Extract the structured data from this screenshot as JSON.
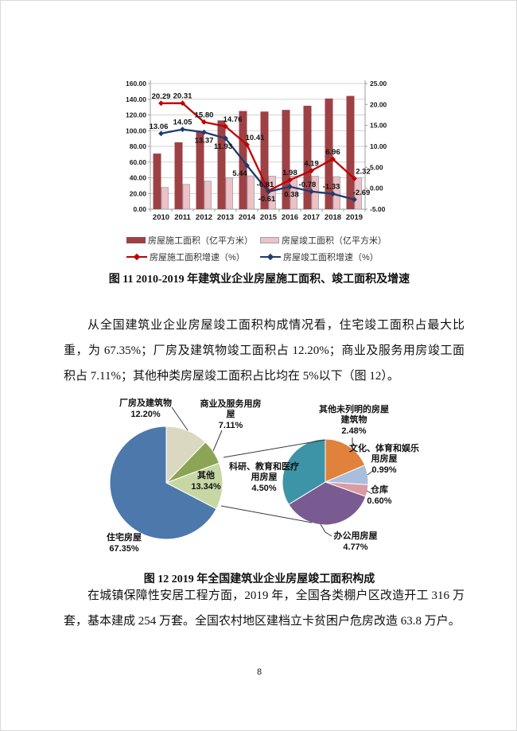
{
  "page": {
    "number": "8"
  },
  "figure11": {
    "caption": "图 11  2010-2019 年建筑业企业房屋施工面积、竣工面积及增速"
  },
  "figure12": {
    "caption": "图 12  2019 年全国建筑业企业房屋竣工面积构成"
  },
  "paragraphs": {
    "p1": "从全国建筑业企业房屋竣工面积构成情况看，住宅竣工面积占最大比重，为 67.35%；厂房及建筑物竣工面积占 12.20%；商业及服务用房竣工面积占 7.11%；其他种类房屋竣工面积占比均在 5%以下（图 12）。",
    "p2": "在城镇保障性安居工程方面，2019 年，全国各类棚户区改造开工 316 万套，基本建成 254 万套。全国农村地区建档立卡贫困户危房改造 63.8 万户。"
  },
  "chart_data": [
    {
      "type": "bar+line",
      "title": "2010-2019 年建筑业企业房屋施工面积、竣工面积及增速",
      "categories": [
        "2010",
        "2011",
        "2012",
        "2013",
        "2014",
        "2015",
        "2016",
        "2017",
        "2018",
        "2019"
      ],
      "left_axis": {
        "min": 0,
        "max": 160,
        "step": 20
      },
      "right_axis": {
        "min": -5,
        "max": 25,
        "step": 5
      },
      "grid": true,
      "legend_position": "bottom",
      "series": [
        {
          "name": "房屋施工面积（亿平方米）",
          "kind": "bar",
          "axis": "left",
          "color": "#9d4145",
          "values": [
            70.8,
            85.2,
            98.6,
            113.0,
            125.0,
            124.3,
            126.4,
            131.7,
            140.9,
            144.2
          ]
        },
        {
          "name": "房屋竣工面积（亿平方米）",
          "kind": "bar",
          "axis": "left",
          "color": "#eec1c5",
          "stroke": "#93a0b4",
          "values": [
            27.7,
            31.6,
            35.8,
            40.2,
            42.4,
            42.1,
            42.2,
            41.9,
            41.4,
            40.2
          ]
        },
        {
          "name": "房屋施工面积增速（%）",
          "kind": "line",
          "axis": "right",
          "color": "#c00000",
          "values": [
            20.29,
            20.31,
            15.8,
            14.76,
            10.41,
            -0.61,
            1.98,
            4.19,
            6.96,
            2.32
          ],
          "show_labels": true,
          "label_pos": [
            "above",
            "above",
            "above",
            "above",
            "above",
            "below",
            "above",
            "above",
            "above",
            "above"
          ],
          "label_dx": [
            0,
            0,
            0,
            9,
            10,
            -2,
            0,
            0,
            0,
            11
          ]
        },
        {
          "name": "房屋竣工面积增速（%）",
          "kind": "line",
          "axis": "right",
          "color": "#1f3c6e",
          "values": [
            13.06,
            14.05,
            13.37,
            11.93,
            5.44,
            -0.81,
            0.38,
            -0.78,
            -1.33,
            -2.69
          ],
          "show_labels": true,
          "label_pos": [
            "above",
            "above",
            "below",
            "below",
            "below",
            "above",
            "below",
            "above",
            "above",
            "above"
          ],
          "label_dx": [
            -3,
            0,
            0,
            -3,
            -9,
            -4,
            2,
            -5,
            -2,
            9
          ]
        }
      ]
    },
    {
      "type": "pie",
      "title": "2019 年全国建筑业企业房屋竣工面积构成（总体）",
      "slices": [
        {
          "label": "厂房及建筑物",
          "pct": 12.2,
          "pct_label": "12.20%",
          "color": "#dbd8c1"
        },
        {
          "label": "商业及服务用房屋",
          "pct": 7.11,
          "pct_label": "7.11%",
          "color": "#8ba455"
        },
        {
          "label": "其他",
          "pct": 13.34,
          "pct_label": "13.34%",
          "color": "#c6d7a4"
        },
        {
          "label": "住宅房屋",
          "pct": 67.35,
          "pct_label": "67.35%",
          "color": "#4c78ac"
        }
      ]
    },
    {
      "type": "pie",
      "title": "其他竣工面积明细",
      "slices": [
        {
          "label": "其他未列明的房屋建筑物",
          "pct": 2.48,
          "pct_label": "2.48%",
          "color": "#e0813c"
        },
        {
          "label": "文化、体育和娱乐用房屋",
          "pct": 0.99,
          "pct_label": "0.99%",
          "color": "#a9bddf"
        },
        {
          "label": "仓库",
          "pct": 0.6,
          "pct_label": "0.60%",
          "color": "#db9ba3"
        },
        {
          "label": "办公用房屋",
          "pct": 4.77,
          "pct_label": "4.77%",
          "color": "#7a5b91"
        },
        {
          "label": "科研、教育和医疗用房屋",
          "pct": 4.5,
          "pct_label": "4.50%",
          "color": "#3d94a6"
        }
      ]
    }
  ]
}
